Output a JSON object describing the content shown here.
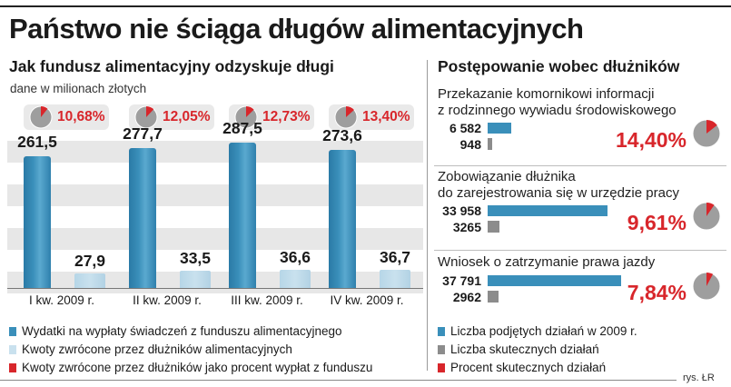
{
  "title": "Państwo nie ściąga długów alimentacyjnych",
  "left_panel": {
    "subtitle": "Jak fundusz alimentacyjny odzyskuje długi",
    "unit": "dane w milionach złotych"
  },
  "right_panel": {
    "subtitle": "Postępowanie wobec dłużników"
  },
  "colors": {
    "blue": "#3a8fba",
    "light_blue": "#c9e1ee",
    "gray": "#8c8c8c",
    "red": "#d8262b"
  },
  "chart_data": [
    {
      "type": "bar",
      "categories": [
        "I kw. 2009 r.",
        "II kw. 2009 r.",
        "III kw. 2009 r.",
        "IV kw. 2009 r."
      ],
      "series": [
        {
          "name": "Wydatki na wypłaty świadczeń z funduszu alimentacyjnego",
          "values": [
            261.5,
            277.7,
            287.5,
            273.6
          ],
          "labels": [
            "261,5",
            "277,7",
            "287,5",
            "273,6"
          ]
        },
        {
          "name": "Kwoty zwrócone przez dłużników alimentacyjnych",
          "values": [
            27.9,
            33.5,
            36.6,
            36.7
          ],
          "labels": [
            "27,9",
            "33,5",
            "36,6",
            "36,7"
          ]
        },
        {
          "name": "Kwoty zwrócone przez dłużników jako procent wypłat z funduszu",
          "values": [
            10.68,
            12.05,
            12.73,
            13.4
          ],
          "labels": [
            "10,68%",
            "12,05%",
            "12,73%",
            "13,40%"
          ]
        }
      ],
      "ylim": [
        0,
        300
      ]
    },
    {
      "type": "bar",
      "categories": [
        "Przekazanie komornikowi informacji z rodzinnego wywiadu środowiskowego",
        "Zobowiązanie dłużnika do zarejestrowania się w urzędzie pracy",
        "Wniosek o zatrzymanie prawa jazdy"
      ],
      "category_lines": [
        [
          "Przekazanie komornikowi informacji",
          "z rodzinnego wywiadu środowiskowego"
        ],
        [
          "Zobowiązanie dłużnika",
          "do zarejestrowania się w urzędzie pracy"
        ],
        [
          "Wniosek o zatrzymanie prawa jazdy"
        ]
      ],
      "series": [
        {
          "name": "Liczba podjętych działań w 2009 r.",
          "values": [
            6582,
            33958,
            37791
          ],
          "labels": [
            "6 582",
            "33 958",
            "37 791"
          ]
        },
        {
          "name": "Liczba skutecznych działań",
          "values": [
            948,
            3265,
            2962
          ],
          "labels": [
            "948",
            "3265",
            "2962"
          ]
        },
        {
          "name": "Procent skutecznych działań",
          "values": [
            14.4,
            9.61,
            7.84
          ],
          "labels": [
            "14,40%",
            "9,61%",
            "7,84%"
          ]
        }
      ],
      "orientation": "horizontal"
    }
  ],
  "legend_left": [
    "Wydatki na wypłaty świadczeń z funduszu alimentacyjnego",
    "Kwoty zwrócone przez dłużników alimentacyjnych",
    "Kwoty zwrócone przez dłużników jako procent wypłat z funduszu"
  ],
  "legend_right": [
    "Liczba podjętych działań w 2009 r.",
    "Liczba skutecznych działań",
    "Procent skutecznych działań"
  ],
  "credit": "rys. ŁR"
}
